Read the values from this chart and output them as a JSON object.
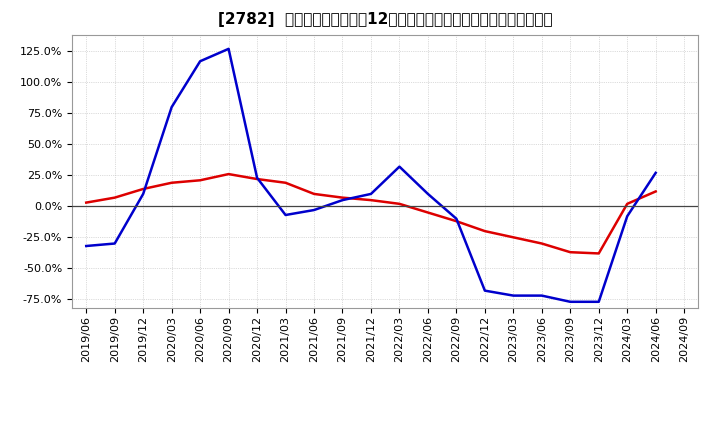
{
  "title": "[2782]  キャッシュフローの12か月移動合計の対前年同期増減率の推移",
  "background_color": "#ffffff",
  "plot_bg_color": "#ffffff",
  "grid_color": "#bbbbbb",
  "ylim": [
    -0.82,
    1.38
  ],
  "yticks": [
    -0.75,
    -0.5,
    -0.25,
    0.0,
    0.25,
    0.5,
    0.75,
    1.0,
    1.25
  ],
  "x_labels": [
    "2019/06",
    "2019/09",
    "2019/12",
    "2020/03",
    "2020/06",
    "2020/09",
    "2020/12",
    "2021/03",
    "2021/06",
    "2021/09",
    "2021/12",
    "2022/03",
    "2022/06",
    "2022/09",
    "2022/12",
    "2023/03",
    "2023/06",
    "2023/09",
    "2023/12",
    "2024/03",
    "2024/06",
    "2024/09"
  ],
  "operating_cf": [
    0.03,
    0.07,
    0.14,
    0.19,
    0.21,
    0.26,
    0.22,
    0.19,
    0.1,
    0.07,
    0.05,
    0.02,
    -0.05,
    -0.12,
    -0.2,
    -0.25,
    -0.3,
    -0.37,
    -0.38,
    0.02,
    0.12,
    null
  ],
  "free_cf": [
    -0.32,
    -0.3,
    0.1,
    0.8,
    1.17,
    1.27,
    0.23,
    -0.07,
    -0.03,
    0.05,
    0.1,
    0.32,
    0.1,
    -0.1,
    -0.68,
    -0.72,
    -0.72,
    -0.77,
    -0.77,
    -0.08,
    0.27,
    null
  ],
  "operating_color": "#dd0000",
  "free_color": "#0000cc",
  "line_width": 1.8,
  "title_fontsize": 11,
  "tick_fontsize": 8,
  "legend_fontsize": 9
}
